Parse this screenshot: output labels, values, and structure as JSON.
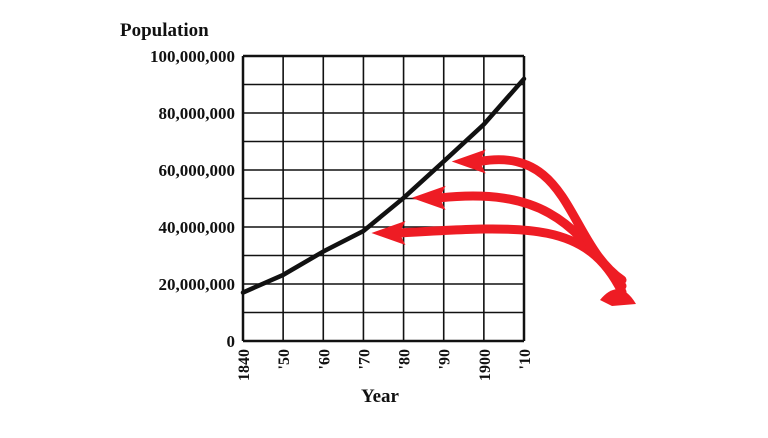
{
  "chart_data": {
    "type": "line",
    "ylabel": "Population",
    "xlabel": "Year",
    "x": [
      1840,
      1850,
      1860,
      1870,
      1880,
      1890,
      1900,
      1910
    ],
    "xtick_labels": [
      "1840",
      "'50",
      "'60",
      "'70",
      "'80",
      "'90",
      "1900",
      "'10"
    ],
    "ytick_values": [
      0,
      20000000,
      40000000,
      60000000,
      80000000,
      100000000
    ],
    "ytick_labels": [
      "0",
      "20,000,000",
      "40,000,000",
      "60,000,000",
      "80,000,000",
      "100,000,000"
    ],
    "ylim": [
      0,
      100000000
    ],
    "xlim": [
      1840,
      1910
    ],
    "grid": true,
    "series": [
      {
        "values": [
          17000000,
          23200000,
          31400000,
          38600000,
          50200000,
          63000000,
          76000000,
          92000000
        ]
      }
    ],
    "annotations": {
      "arrows_color": "#ee1c24",
      "arrows_point_to_x": [
        1870,
        1880,
        1890
      ]
    },
    "line_color": "#111111",
    "grid_color": "#111111"
  }
}
